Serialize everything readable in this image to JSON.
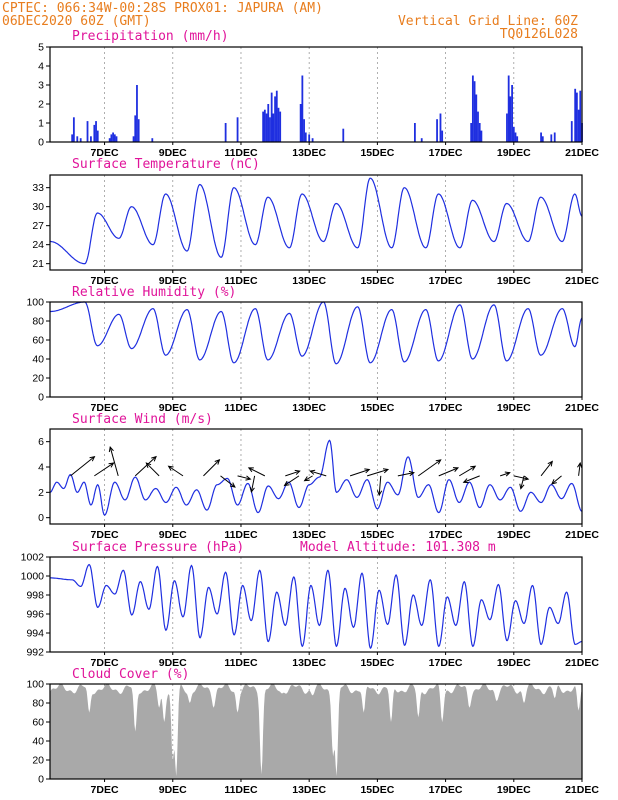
{
  "header": {
    "line1": "CPTEC:   066:34W-00:28S   PROX01: JAPURA (AM)",
    "date": "06DEC2020 60Z (GMT)",
    "grid_note": "Vertical Grid Line: 60Z",
    "code": "TQ0126L028"
  },
  "colors": {
    "header": "#e87d1e",
    "panel_title": "#e0149a",
    "series": "#1f2fe0",
    "cloud": "#a9a9a9",
    "wind": "#000000"
  },
  "chart_data": [
    {
      "type": "bar",
      "title": "Precipitation (mm/h)",
      "ylim": [
        0,
        5
      ],
      "yticks": [
        "0",
        "1",
        "2",
        "3",
        "4",
        "5"
      ],
      "xticks": [
        "7DEC",
        "9DEC",
        "11DEC",
        "13DEC",
        "15DEC",
        "17DEC",
        "19DEC",
        "21DEC"
      ],
      "events": [
        {
          "day": 6.05,
          "mm": 0.4
        },
        {
          "day": 6.1,
          "mm": 1.3
        },
        {
          "day": 6.2,
          "mm": 0.3
        },
        {
          "day": 6.3,
          "mm": 0.2
        },
        {
          "day": 6.5,
          "mm": 1.1
        },
        {
          "day": 6.6,
          "mm": 0.3
        },
        {
          "day": 6.7,
          "mm": 0.9
        },
        {
          "day": 6.75,
          "mm": 1.1
        },
        {
          "day": 6.8,
          "mm": 0.6
        },
        {
          "day": 7.15,
          "mm": 0.2
        },
        {
          "day": 7.2,
          "mm": 0.4
        },
        {
          "day": 7.25,
          "mm": 0.5
        },
        {
          "day": 7.3,
          "mm": 0.4
        },
        {
          "day": 7.35,
          "mm": 0.3
        },
        {
          "day": 7.85,
          "mm": 0.3
        },
        {
          "day": 7.9,
          "mm": 1.4
        },
        {
          "day": 7.95,
          "mm": 3.0
        },
        {
          "day": 8.0,
          "mm": 1.2
        },
        {
          "day": 8.4,
          "mm": 0.2
        },
        {
          "day": 10.55,
          "mm": 1.0
        },
        {
          "day": 10.9,
          "mm": 1.3
        },
        {
          "day": 11.65,
          "mm": 1.6
        },
        {
          "day": 11.7,
          "mm": 1.7
        },
        {
          "day": 11.75,
          "mm": 1.5
        },
        {
          "day": 11.8,
          "mm": 2.0
        },
        {
          "day": 11.85,
          "mm": 1.3
        },
        {
          "day": 11.9,
          "mm": 2.6
        },
        {
          "day": 11.95,
          "mm": 1.5
        },
        {
          "day": 12.0,
          "mm": 2.4
        },
        {
          "day": 12.05,
          "mm": 2.7
        },
        {
          "day": 12.1,
          "mm": 1.8
        },
        {
          "day": 12.15,
          "mm": 1.6
        },
        {
          "day": 12.75,
          "mm": 2.0
        },
        {
          "day": 12.8,
          "mm": 3.5
        },
        {
          "day": 12.85,
          "mm": 1.2
        },
        {
          "day": 12.9,
          "mm": 0.5
        },
        {
          "day": 13.0,
          "mm": 0.4
        },
        {
          "day": 13.1,
          "mm": 0.2
        },
        {
          "day": 14.0,
          "mm": 0.7
        },
        {
          "day": 16.1,
          "mm": 1.0
        },
        {
          "day": 16.3,
          "mm": 0.2
        },
        {
          "day": 16.75,
          "mm": 1.2
        },
        {
          "day": 16.85,
          "mm": 1.5
        },
        {
          "day": 16.9,
          "mm": 0.6
        },
        {
          "day": 17.75,
          "mm": 1.0
        },
        {
          "day": 17.8,
          "mm": 3.5
        },
        {
          "day": 17.85,
          "mm": 3.2
        },
        {
          "day": 17.9,
          "mm": 2.5
        },
        {
          "day": 17.95,
          "mm": 1.6
        },
        {
          "day": 18.0,
          "mm": 1.0
        },
        {
          "day": 18.05,
          "mm": 0.6
        },
        {
          "day": 18.8,
          "mm": 1.5
        },
        {
          "day": 18.85,
          "mm": 3.5
        },
        {
          "day": 18.9,
          "mm": 2.4
        },
        {
          "day": 18.95,
          "mm": 3.0
        },
        {
          "day": 19.0,
          "mm": 0.8
        },
        {
          "day": 19.05,
          "mm": 0.5
        },
        {
          "day": 19.1,
          "mm": 0.3
        },
        {
          "day": 19.8,
          "mm": 0.5
        },
        {
          "day": 19.85,
          "mm": 0.3
        },
        {
          "day": 20.1,
          "mm": 0.4
        },
        {
          "day": 20.2,
          "mm": 0.5
        },
        {
          "day": 20.7,
          "mm": 1.1
        },
        {
          "day": 20.8,
          "mm": 2.8
        },
        {
          "day": 20.85,
          "mm": 2.6
        },
        {
          "day": 20.9,
          "mm": 1.7
        },
        {
          "day": 20.95,
          "mm": 2.7
        },
        {
          "day": 21.0,
          "mm": 1.0
        }
      ]
    },
    {
      "type": "line",
      "title": "Surface Temperature (nC)",
      "ylim": [
        20,
        35
      ],
      "yticks": [
        "21",
        "24",
        "27",
        "30",
        "33"
      ],
      "xticks": [
        "7DEC",
        "9DEC",
        "11DEC",
        "13DEC",
        "15DEC",
        "17DEC",
        "19DEC",
        "21DEC"
      ],
      "days": [
        6,
        7,
        8,
        9,
        10,
        11,
        12,
        13,
        14,
        15,
        16,
        17,
        18,
        19,
        20
      ],
      "tmax": [
        29,
        30,
        32,
        33.5,
        33,
        31.5,
        32,
        30.5,
        34.5,
        33,
        32,
        31,
        30.5,
        31.5,
        32
      ],
      "tmin": [
        21,
        25,
        24,
        23,
        22,
        24,
        23.5,
        24.5,
        23.5,
        23.5,
        23.5,
        23.5,
        24.5,
        24.5,
        24.5
      ],
      "end_value": 28.5
    },
    {
      "type": "line",
      "title": "Relative Humidity (%)",
      "ylim": [
        0,
        100
      ],
      "yticks": [
        "0",
        "20",
        "40",
        "60",
        "80",
        "100"
      ],
      "xticks": [
        "7DEC",
        "9DEC",
        "11DEC",
        "13DEC",
        "15DEC",
        "17DEC",
        "19DEC",
        "21DEC"
      ],
      "days": [
        6,
        7,
        8,
        9,
        10,
        11,
        12,
        13,
        14,
        15,
        16,
        17,
        18,
        19,
        20
      ],
      "rhmax": [
        100,
        87,
        93,
        92,
        90,
        93,
        88,
        100,
        95,
        92,
        92,
        97,
        97,
        93,
        93
      ],
      "rhmin": [
        54,
        51,
        44,
        39,
        36,
        39,
        43,
        35,
        36,
        37,
        38,
        40,
        38,
        44,
        53
      ],
      "end_value": 83
    },
    {
      "type": "line",
      "title": "Surface Wind (m/s)",
      "ylim": [
        -0.5,
        7
      ],
      "yticks": [
        "0",
        "2",
        "4",
        "6"
      ],
      "xticks": [
        "7DEC",
        "9DEC",
        "11DEC",
        "13DEC",
        "15DEC",
        "17DEC",
        "19DEC",
        "21DEC"
      ],
      "speed": [
        {
          "day": 5.4,
          "v": 2.0
        },
        {
          "day": 5.6,
          "v": 2.8
        },
        {
          "day": 5.8,
          "v": 2.3
        },
        {
          "day": 6.0,
          "v": 3.4
        },
        {
          "day": 6.2,
          "v": 2.0
        },
        {
          "day": 6.4,
          "v": 2.8
        },
        {
          "day": 6.6,
          "v": 1.0
        },
        {
          "day": 6.8,
          "v": 2.6
        },
        {
          "day": 7.0,
          "v": 0.2
        },
        {
          "day": 7.3,
          "v": 2.8
        },
        {
          "day": 7.6,
          "v": 1.4
        },
        {
          "day": 7.9,
          "v": 3.2
        },
        {
          "day": 8.2,
          "v": 1.4
        },
        {
          "day": 8.5,
          "v": 2.3
        },
        {
          "day": 8.8,
          "v": 1.2
        },
        {
          "day": 9.1,
          "v": 2.4
        },
        {
          "day": 9.4,
          "v": 1.0
        },
        {
          "day": 9.7,
          "v": 2.2
        },
        {
          "day": 10.0,
          "v": 0.6
        },
        {
          "day": 10.3,
          "v": 2.6
        },
        {
          "day": 10.6,
          "v": 3.1
        },
        {
          "day": 10.9,
          "v": 1.0
        },
        {
          "day": 11.2,
          "v": 2.7
        },
        {
          "day": 11.5,
          "v": 0.4
        },
        {
          "day": 11.8,
          "v": 2.5
        },
        {
          "day": 12.1,
          "v": 1.5
        },
        {
          "day": 12.4,
          "v": 2.8
        },
        {
          "day": 12.7,
          "v": 0.8
        },
        {
          "day": 13.0,
          "v": 2.6
        },
        {
          "day": 13.3,
          "v": 3.2
        },
        {
          "day": 13.6,
          "v": 6.1
        },
        {
          "day": 13.8,
          "v": 2.0
        },
        {
          "day": 14.1,
          "v": 3.0
        },
        {
          "day": 14.4,
          "v": 1.6
        },
        {
          "day": 14.7,
          "v": 3.0
        },
        {
          "day": 15.0,
          "v": 0.7
        },
        {
          "day": 15.3,
          "v": 2.8
        },
        {
          "day": 15.6,
          "v": 1.8
        },
        {
          "day": 15.9,
          "v": 4.8
        },
        {
          "day": 16.2,
          "v": 1.6
        },
        {
          "day": 16.5,
          "v": 2.6
        },
        {
          "day": 16.8,
          "v": 0.4
        },
        {
          "day": 17.1,
          "v": 3.0
        },
        {
          "day": 17.4,
          "v": 1.2
        },
        {
          "day": 17.7,
          "v": 2.8
        },
        {
          "day": 18.0,
          "v": 0.8
        },
        {
          "day": 18.3,
          "v": 2.6
        },
        {
          "day": 18.6,
          "v": 1.4
        },
        {
          "day": 18.9,
          "v": 2.4
        },
        {
          "day": 19.2,
          "v": 0.5
        },
        {
          "day": 19.5,
          "v": 2.0
        },
        {
          "day": 19.8,
          "v": 1.2
        },
        {
          "day": 20.1,
          "v": 2.6
        },
        {
          "day": 20.4,
          "v": 1.5
        },
        {
          "day": 20.7,
          "v": 2.7
        },
        {
          "day": 21.0,
          "v": 0.5
        }
      ],
      "vectors": [
        {
          "day": 6.0,
          "u": 1.5,
          "v": 1.2
        },
        {
          "day": 6.7,
          "u": 1.2,
          "v": 0.8
        },
        {
          "day": 7.4,
          "u": -0.5,
          "v": 1.8
        },
        {
          "day": 7.9,
          "u": 1.3,
          "v": 1.2
        },
        {
          "day": 8.6,
          "u": -0.8,
          "v": 0.8
        },
        {
          "day": 9.3,
          "u": -0.9,
          "v": 0.6
        },
        {
          "day": 9.9,
          "u": 1.0,
          "v": 1.0
        },
        {
          "day": 10.4,
          "u": 0.9,
          "v": -0.7
        },
        {
          "day": 10.9,
          "u": 0.8,
          "v": -0.2
        },
        {
          "day": 11.4,
          "u": -0.2,
          "v": -1.0
        },
        {
          "day": 11.7,
          "u": -1.0,
          "v": 0.5
        },
        {
          "day": 12.3,
          "u": 0.9,
          "v": 0.3
        },
        {
          "day": 12.7,
          "u": -0.9,
          "v": -0.6
        },
        {
          "day": 13.1,
          "u": -0.5,
          "v": -0.3
        },
        {
          "day": 13.5,
          "u": -1.0,
          "v": 0.3
        },
        {
          "day": 14.2,
          "u": 1.2,
          "v": 0.4
        },
        {
          "day": 14.7,
          "u": 1.3,
          "v": 0.4
        },
        {
          "day": 15.1,
          "u": -0.1,
          "v": -1.2
        },
        {
          "day": 15.6,
          "u": 1.0,
          "v": 0.2
        },
        {
          "day": 16.2,
          "u": 1.4,
          "v": 1.0
        },
        {
          "day": 16.8,
          "u": 1.2,
          "v": 0.5
        },
        {
          "day": 17.4,
          "u": 1.0,
          "v": 0.6
        },
        {
          "day": 18.0,
          "u": -1.0,
          "v": -0.4
        },
        {
          "day": 18.6,
          "u": 0.6,
          "v": 0.2
        },
        {
          "day": 19.0,
          "u": 0.9,
          "v": -0.2
        },
        {
          "day": 19.3,
          "u": -0.2,
          "v": -0.8
        },
        {
          "day": 19.8,
          "u": 0.7,
          "v": 0.9
        },
        {
          "day": 20.4,
          "u": -0.6,
          "v": -0.5
        },
        {
          "day": 20.9,
          "u": 0.1,
          "v": 0.8
        }
      ]
    },
    {
      "type": "line",
      "title": "Surface Pressure (hPa)",
      "annotation": "Model Altitude: 101.308 m",
      "ylim": [
        992,
        1002
      ],
      "yticks": [
        "992",
        "994",
        "996",
        "998",
        "1000",
        "1002"
      ],
      "xticks": [
        "7DEC",
        "9DEC",
        "11DEC",
        "13DEC",
        "15DEC",
        "17DEC",
        "19DEC",
        "21DEC"
      ],
      "days": [
        6,
        7,
        8,
        9,
        10,
        11,
        12,
        13,
        14,
        15,
        16,
        17,
        18,
        19,
        20
      ],
      "pmax": [
        1001.2,
        1000.6,
        1001.0,
        1001.1,
        1000.4,
        1000.6,
        999.9,
        1000.6,
        1000.3,
        1000.1,
        999.6,
        999.4,
        999.1,
        999.0,
        998.3
      ],
      "pmin": [
        996.7,
        995.9,
        994.3,
        993.5,
        993.8,
        993.1,
        992.6,
        992.6,
        992.4,
        992.7,
        992.6,
        992.6,
        993.2,
        992.8,
        992.8
      ],
      "end_value": 993.1
    },
    {
      "type": "bar",
      "title": "Cloud Cover (%)",
      "ylim": [
        0,
        100
      ],
      "yticks": [
        "0",
        "20",
        "40",
        "60",
        "80",
        "100"
      ],
      "xticks": [
        "7DEC",
        "9DEC",
        "11DEC",
        "13DEC",
        "15DEC",
        "17DEC",
        "19DEC",
        "21DEC"
      ],
      "typical": 95,
      "dips": [
        {
          "day": 6.55,
          "value": 70
        },
        {
          "day": 7.9,
          "value": 50
        },
        {
          "day": 8.6,
          "value": 75
        },
        {
          "day": 8.75,
          "value": 60
        },
        {
          "day": 9.0,
          "value": 20
        },
        {
          "day": 9.1,
          "value": 3
        },
        {
          "day": 9.5,
          "value": 80
        },
        {
          "day": 10.2,
          "value": 75
        },
        {
          "day": 10.9,
          "value": 70
        },
        {
          "day": 11.6,
          "value": 5
        },
        {
          "day": 12.2,
          "value": 90
        },
        {
          "day": 13.1,
          "value": 88
        },
        {
          "day": 13.7,
          "value": 25
        },
        {
          "day": 13.8,
          "value": 3
        },
        {
          "day": 14.6,
          "value": 70
        },
        {
          "day": 15.4,
          "value": 60
        },
        {
          "day": 16.2,
          "value": 65
        },
        {
          "day": 16.9,
          "value": 60
        },
        {
          "day": 17.7,
          "value": 75
        },
        {
          "day": 18.5,
          "value": 82
        },
        {
          "day": 19.3,
          "value": 80
        },
        {
          "day": 20.2,
          "value": 85
        },
        {
          "day": 20.9,
          "value": 72
        }
      ]
    }
  ]
}
